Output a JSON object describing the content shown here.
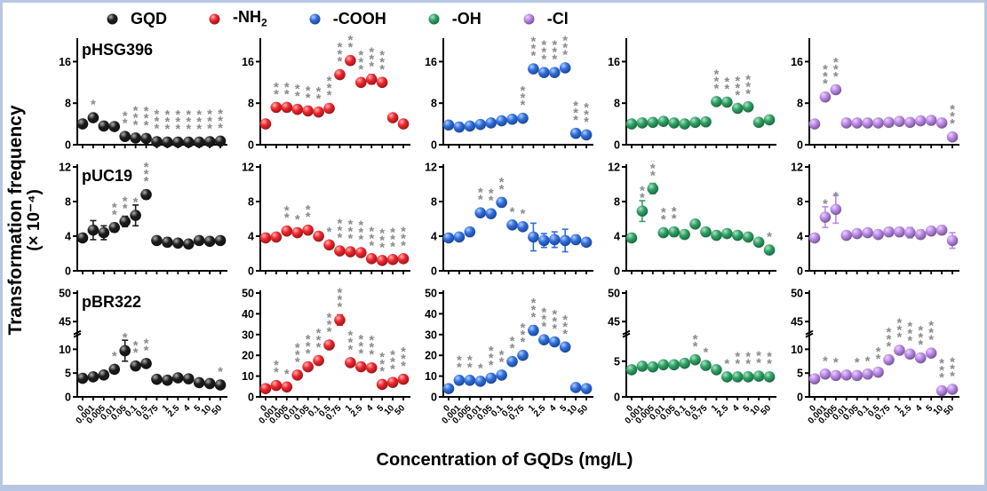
{
  "figure": {
    "y_label_line1": "Transformation frequency",
    "y_label_line2": "(× 10⁻⁴)",
    "x_label": "Concentration of GQDs (mg/L)",
    "border_color": "#b7c6e3",
    "sig_marker_color": "#8a8a8a",
    "axis_color": "#000000"
  },
  "legend": {
    "items": [
      {
        "key": "GQD",
        "label": "GQD",
        "sub": "",
        "color": "#1c1c1c"
      },
      {
        "key": "NH2",
        "label": "-NH",
        "sub": "2",
        "color": "#f0252c"
      },
      {
        "key": "COOH",
        "label": "-COOH",
        "sub": "",
        "color": "#2e6fe0"
      },
      {
        "key": "OH",
        "label": "-OH",
        "sub": "",
        "color": "#2ea365"
      },
      {
        "key": "Cl",
        "label": "-Cl",
        "sub": "",
        "color": "#bb88e8"
      }
    ]
  },
  "chart_data": {
    "type": "scatter",
    "categories": [
      "0",
      "0.001",
      "0.005",
      "0.01",
      "0.05",
      "0.1",
      "0.5",
      "0.75",
      "1",
      "2.5",
      "4",
      "5",
      "10",
      "50"
    ],
    "rows": [
      {
        "plasmid": "pHSG396",
        "panels": [
          {
            "series": "GQD",
            "ymax": 20,
            "yticks": [
              0,
              8,
              16
            ],
            "values": [
              4.0,
              5.2,
              3.6,
              3.5,
              1.6,
              1.3,
              1.2,
              0.6,
              0.5,
              0.5,
              0.5,
              0.5,
              0.6,
              0.7
            ],
            "errors": [
              0.4,
              0.5,
              0.4,
              0.3,
              0.3,
              0.2,
              0.2,
              0.2,
              0.15,
              0.15,
              0.15,
              0.15,
              0.15,
              0.2
            ],
            "sig": [
              "",
              "*",
              "",
              "",
              "**",
              "***",
              "***",
              "***",
              "***",
              "***",
              "***",
              "***",
              "***",
              "***"
            ]
          },
          {
            "series": "NH2",
            "ymax": 20,
            "yticks": [
              0,
              8,
              16
            ],
            "values": [
              4.0,
              7.2,
              7.2,
              6.8,
              6.5,
              6.3,
              7.0,
              13.5,
              16.2,
              12.0,
              12.6,
              12.0,
              5.2,
              4.0
            ],
            "errors": [
              0.5,
              0.5,
              0.5,
              0.5,
              0.5,
              0.5,
              0.5,
              0.6,
              0.8,
              0.6,
              0.9,
              0.6,
              0.5,
              0.5
            ],
            "sig": [
              "",
              "**",
              "**",
              "**",
              "**",
              "**",
              "***",
              "***",
              "***",
              "***",
              "***",
              "***",
              "",
              ""
            ]
          },
          {
            "series": "COOH",
            "ymax": 20,
            "yticks": [
              0,
              8,
              16
            ],
            "values": [
              3.8,
              3.4,
              3.6,
              3.9,
              4.2,
              4.6,
              4.9,
              5.1,
              14.6,
              13.9,
              13.9,
              14.8,
              2.2,
              1.9
            ],
            "errors": [
              0.4,
              0.4,
              0.4,
              0.4,
              0.4,
              0.4,
              0.4,
              0.4,
              0.6,
              0.5,
              0.5,
              0.6,
              0.3,
              0.3
            ],
            "sig": [
              "",
              "",
              "",
              "",
              "",
              "",
              "",
              "***",
              "***",
              "***",
              "***",
              "***",
              "***",
              "***"
            ]
          },
          {
            "series": "OH",
            "ymax": 20,
            "yticks": [
              0,
              8,
              16
            ],
            "values": [
              4.0,
              4.2,
              4.3,
              4.5,
              4.2,
              4.0,
              4.3,
              4.4,
              8.3,
              8.2,
              7.0,
              7.3,
              4.3,
              4.8
            ],
            "errors": [
              0.4,
              0.4,
              0.4,
              0.4,
              0.4,
              0.3,
              0.4,
              0.4,
              0.5,
              0.5,
              0.5,
              0.5,
              0.4,
              0.4
            ],
            "sig": [
              "",
              "",
              "",
              "",
              "",
              "",
              "",
              "",
              "***",
              "**",
              "***",
              "***",
              "",
              ""
            ]
          },
          {
            "series": "Cl",
            "ymax": 20,
            "yticks": [
              0,
              8,
              16
            ],
            "values": [
              4.0,
              9.2,
              10.6,
              4.2,
              4.2,
              4.2,
              4.2,
              4.3,
              4.5,
              4.3,
              4.6,
              4.7,
              4.2,
              1.5
            ],
            "errors": [
              0.4,
              0.7,
              0.8,
              0.3,
              0.3,
              0.3,
              0.3,
              0.3,
              0.3,
              0.3,
              0.3,
              0.3,
              0.4,
              0.3
            ],
            "sig": [
              "",
              "***",
              "***",
              "",
              "",
              "",
              "",
              "",
              "",
              "",
              "",
              "",
              "",
              "***"
            ]
          }
        ]
      },
      {
        "plasmid": "pUC19",
        "panels": [
          {
            "series": "GQD",
            "ymax": 12,
            "yticks": [
              0,
              4,
              8,
              12
            ],
            "values": [
              3.8,
              4.7,
              4.4,
              5.0,
              5.7,
              6.4,
              8.8,
              3.5,
              3.3,
              3.2,
              3.1,
              3.5,
              3.4,
              3.5
            ],
            "errors": [
              0.4,
              1.1,
              0.8,
              0.5,
              0.6,
              1.2,
              0.5,
              0.4,
              0.5,
              0.4,
              0.3,
              0.4,
              0.4,
              0.4
            ],
            "sig": [
              "",
              "",
              "",
              "**",
              "**",
              "*",
              "***",
              "",
              "",
              "",
              "",
              "",
              "",
              ""
            ]
          },
          {
            "series": "NH2",
            "ymax": 12,
            "yticks": [
              0,
              4,
              8,
              12
            ],
            "values": [
              3.8,
              3.9,
              4.6,
              4.4,
              4.7,
              4.0,
              3.0,
              2.3,
              2.2,
              2.1,
              1.4,
              1.2,
              1.3,
              1.4
            ],
            "errors": [
              0.3,
              0.3,
              0.3,
              0.3,
              0.3,
              0.3,
              0.3,
              0.3,
              0.3,
              0.3,
              0.3,
              0.3,
              0.3,
              0.3
            ],
            "sig": [
              "",
              "",
              "**",
              "*",
              "**",
              "",
              "*",
              "***",
              "***",
              "***",
              "***",
              "***",
              "***",
              "***"
            ]
          },
          {
            "series": "COOH",
            "ymax": 12,
            "yticks": [
              0,
              4,
              8,
              12
            ],
            "values": [
              3.8,
              3.9,
              4.5,
              6.7,
              6.6,
              7.9,
              5.3,
              5.1,
              3.9,
              3.5,
              3.6,
              3.5,
              3.6,
              3.3
            ],
            "errors": [
              0.3,
              0.4,
              0.3,
              0.4,
              0.4,
              0.5,
              0.4,
              0.4,
              1.6,
              0.8,
              0.9,
              1.3,
              0.5,
              0.4
            ],
            "sig": [
              "",
              "",
              "",
              "**",
              "**",
              "**",
              "*",
              "*",
              "",
              "",
              "",
              "",
              "",
              ""
            ]
          },
          {
            "series": "OH",
            "ymax": 12,
            "yticks": [
              0,
              4,
              8,
              12
            ],
            "values": [
              3.8,
              6.9,
              9.5,
              4.4,
              4.5,
              4.2,
              5.4,
              4.5,
              4.1,
              4.3,
              4.1,
              3.9,
              3.3,
              2.4
            ],
            "errors": [
              0.4,
              1.2,
              0.6,
              0.4,
              0.5,
              0.3,
              0.4,
              0.4,
              0.3,
              0.4,
              0.4,
              0.4,
              0.4,
              0.5
            ],
            "sig": [
              "",
              "**",
              "***",
              "**",
              "**",
              "",
              "",
              "",
              "",
              "",
              "",
              "",
              "",
              "*"
            ]
          },
          {
            "series": "Cl",
            "ymax": 12,
            "yticks": [
              0,
              4,
              8,
              12
            ],
            "values": [
              3.8,
              6.2,
              7.1,
              4.1,
              4.3,
              4.4,
              4.2,
              4.5,
              4.5,
              4.4,
              4.2,
              4.6,
              4.7,
              3.5
            ],
            "errors": [
              0.4,
              1.2,
              1.6,
              0.4,
              0.4,
              0.4,
              0.4,
              0.4,
              0.5,
              0.6,
              0.5,
              0.4,
              0.5,
              0.9
            ],
            "sig": [
              "",
              "*",
              "*",
              "",
              "",
              "",
              "",
              "",
              "",
              "",
              "",
              "",
              "",
              ""
            ]
          }
        ]
      },
      {
        "plasmid": "pBR322",
        "panels": [
          {
            "series": "GQD",
            "ymax": 50,
            "yticks": [
              0,
              5,
              10,
              45,
              50
            ],
            "break": {
              "low_max": 12,
              "high_min": 44,
              "low_frac": 0.55,
              "gap_frac": 0.12
            },
            "values": [
              3.9,
              4.2,
              4.6,
              5.8,
              9.7,
              6.5,
              7.0,
              3.7,
              3.5,
              4.0,
              3.8,
              3.0,
              2.8,
              2.5
            ],
            "errors": [
              0.4,
              0.4,
              0.5,
              0.6,
              2.2,
              0.8,
              0.7,
              0.4,
              0.4,
              0.5,
              0.4,
              0.4,
              0.4,
              0.5
            ],
            "sig": [
              "",
              "",
              "",
              "*",
              "*",
              "**",
              "**",
              "",
              "",
              "",
              "",
              "",
              "",
              "*"
            ]
          },
          {
            "series": "NH2",
            "ymax": 50,
            "yticks": [
              0,
              10,
              20,
              30,
              40,
              50
            ],
            "values": [
              4.0,
              5.5,
              4.8,
              10.5,
              14.5,
              17.5,
              25.0,
              37.0,
              16.5,
              14.5,
              14.0,
              6.0,
              7.0,
              8.5
            ],
            "errors": [
              0.8,
              0.8,
              0.8,
              1.2,
              1.5,
              1.5,
              1.8,
              2.5,
              1.5,
              1.5,
              1.5,
              1.0,
              1.0,
              1.0
            ],
            "sig": [
              "",
              "**",
              "*",
              "***",
              "***",
              "***",
              "***",
              "***",
              "***",
              "***",
              "***",
              "***",
              "***",
              "***"
            ]
          },
          {
            "series": "COOH",
            "ymax": 50,
            "yticks": [
              0,
              10,
              20,
              30,
              40,
              50
            ],
            "values": [
              4.0,
              8.0,
              8.0,
              7.5,
              9.0,
              10.5,
              17.0,
              20.0,
              32.0,
              27.5,
              26.5,
              24.0,
              4.5,
              4.0
            ],
            "errors": [
              0.8,
              1.0,
              1.0,
              1.0,
              1.0,
              1.0,
              1.5,
              1.8,
              2.2,
              1.8,
              1.5,
              1.8,
              0.8,
              0.8
            ],
            "sig": [
              "",
              "**",
              "**",
              "*",
              "***",
              "**",
              "**",
              "***",
              "***",
              "***",
              "***",
              "***",
              "",
              ""
            ]
          },
          {
            "series": "OH",
            "ymax": 50,
            "yticks": [
              0,
              5,
              45,
              50
            ],
            "break": {
              "low_max": 8,
              "high_min": 44,
              "low_frac": 0.55,
              "gap_frac": 0.12
            },
            "values": [
              3.8,
              4.3,
              4.2,
              4.5,
              4.5,
              4.7,
              5.2,
              4.4,
              3.8,
              2.8,
              2.8,
              2.8,
              2.9,
              2.8
            ],
            "errors": [
              0.4,
              0.4,
              0.4,
              0.4,
              0.4,
              0.4,
              0.5,
              0.5,
              0.4,
              0.3,
              0.3,
              0.3,
              0.3,
              0.3
            ],
            "sig": [
              "",
              "",
              "",
              "",
              "",
              "",
              "**",
              "*",
              "",
              "*",
              "**",
              "**",
              "**",
              "**"
            ]
          },
          {
            "series": "Cl",
            "ymax": 50,
            "yticks": [
              0,
              5,
              10,
              45,
              50
            ],
            "break": {
              "low_max": 12,
              "high_min": 44,
              "low_frac": 0.55,
              "gap_frac": 0.12
            },
            "values": [
              3.8,
              4.8,
              4.5,
              4.6,
              4.5,
              4.8,
              5.2,
              7.8,
              9.8,
              9.0,
              8.2,
              9.2,
              1.3,
              1.6
            ],
            "errors": [
              0.5,
              0.6,
              0.5,
              0.4,
              0.4,
              0.5,
              0.5,
              0.8,
              0.9,
              0.8,
              0.8,
              0.8,
              0.3,
              0.4
            ],
            "sig": [
              "",
              "*",
              "*",
              "",
              "*",
              "*",
              "**",
              "***",
              "***",
              "***",
              "***",
              "***",
              "***",
              "***"
            ]
          }
        ]
      }
    ]
  }
}
